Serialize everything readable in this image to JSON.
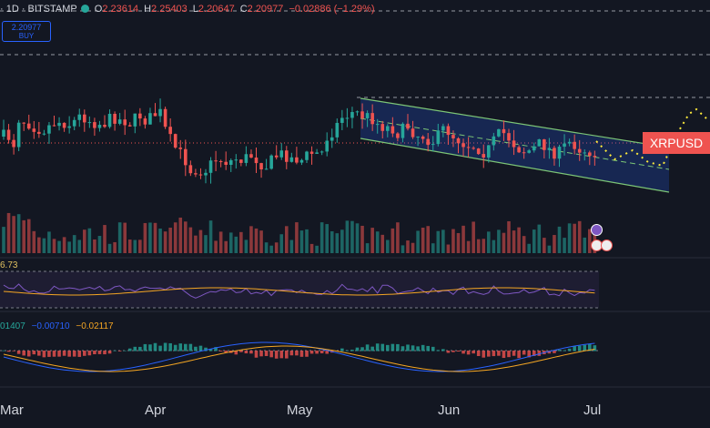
{
  "header": {
    "symbol": "· 1D · BITSTAMP",
    "open_label": "O",
    "open": "2.23614",
    "high_label": "H",
    "high": "2.25403",
    "low_label": "L",
    "low": "2.20647",
    "close_label": "C",
    "close": "2.20977",
    "change": "−0.02886 (−1.29%)"
  },
  "buy_box": {
    "price": "2.20977",
    "label": "BUY"
  },
  "price_tag": {
    "label": "XRPUSD",
    "color": "#ef5350"
  },
  "rsi": {
    "value": "6.73"
  },
  "macd": {
    "v1": "01407",
    "v2": "−0.00710",
    "v3": "−0.02117"
  },
  "months": [
    "Mar",
    "Apr",
    "May",
    "Jun",
    "Jul"
  ],
  "colors": {
    "bg": "#131722",
    "up": "#26a69a",
    "down": "#ef5350",
    "channel": "#7cc576",
    "rsi": "#7e57c2",
    "signal": "#f5a623",
    "macd": "#2962ff"
  },
  "icons": [
    "broadcast-dot-icon",
    "event-flag-icon",
    "us-flag-icon"
  ]
}
